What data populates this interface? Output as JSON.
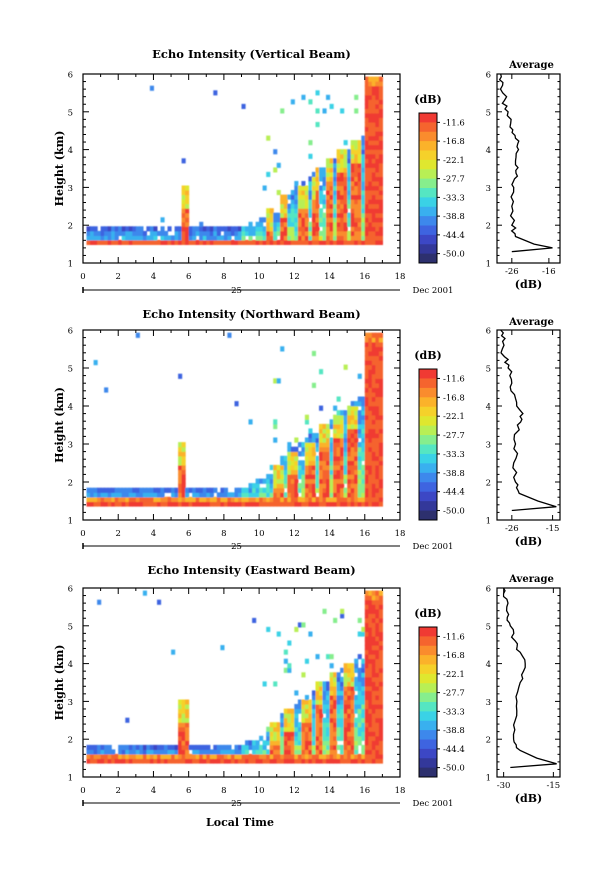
{
  "figure": {
    "x_ticks": [
      "0",
      "2",
      "4",
      "6",
      "8",
      "10",
      "12",
      "14",
      "16",
      "18"
    ],
    "y_ticks": [
      "1",
      "2",
      "3",
      "4",
      "5",
      "6"
    ],
    "day_label": "25",
    "date_label": "Dec 2001",
    "ylabel": "Height (km)",
    "xlabel": "Local Time",
    "colorbar_unit": "(dB)",
    "colorbar_ticks": [
      "-11.6",
      "-16.8",
      "-22.1",
      "-27.7",
      "-33.3",
      "-38.8",
      "-44.4",
      "-50.0"
    ],
    "colorbar_colors": [
      "#f03a33",
      "#f5642e",
      "#fa8c2d",
      "#fbb22a",
      "#f5d12a",
      "#dfe72f",
      "#b8ef55",
      "#86ee8d",
      "#55e6c2",
      "#3ad2e6",
      "#39b0ef",
      "#3d88ec",
      "#3e64e0",
      "#3c47c5",
      "#33389a",
      "#2d306e"
    ],
    "avg_title": "Average",
    "avg_xlabel": "(dB)"
  },
  "chart_data": [
    {
      "type": "heatmap",
      "title": "Echo Intensity (Vertical Beam)",
      "xlabel": "Local Time",
      "ylabel": "Height (km)",
      "xlim": [
        0,
        18
      ],
      "ylim": [
        1,
        6
      ],
      "unit": "dB",
      "color_range": [
        -50.0,
        -11.6
      ],
      "spikes_x": [
        5.7,
        10.5,
        11.3,
        12.4,
        13.1,
        13.9,
        14.6,
        15.4
      ],
      "strong_column_x": [
        15.9,
        16.8
      ],
      "base_height_km": 1.45,
      "average_profile": {
        "title": "Average",
        "xlabel": "(dB)",
        "xticks": [
          "-26",
          "-16"
        ],
        "xlim": [
          -30,
          -13
        ],
        "height": [
          1.3,
          1.4,
          1.5,
          1.7,
          2.0,
          2.5,
          3.0,
          3.3,
          3.6,
          4.0,
          4.3,
          4.6,
          5.0,
          5.3,
          5.7,
          6.0
        ],
        "value": [
          -26,
          -15,
          -20,
          -25,
          -26,
          -26,
          -25.5,
          -24.5,
          -25,
          -24.2,
          -25,
          -26.5,
          -27,
          -28,
          -28.5,
          -29
        ]
      }
    },
    {
      "type": "heatmap",
      "title": "Echo Intensity (Northward Beam)",
      "xlabel": "Local Time",
      "ylabel": "Height (km)",
      "xlim": [
        0,
        18
      ],
      "ylim": [
        1,
        6
      ],
      "unit": "dB",
      "color_range": [
        -50.0,
        -11.6
      ],
      "spikes_x": [
        5.5,
        11.0,
        11.8,
        12.8,
        13.6,
        14.4,
        15.2
      ],
      "strong_column_x": [
        15.9,
        16.8
      ],
      "base_height_km": 1.4,
      "average_profile": {
        "title": "Average",
        "xlabel": "(dB)",
        "xticks": [
          "-26",
          "-15"
        ],
        "xlim": [
          -30,
          -13
        ],
        "height": [
          1.25,
          1.35,
          1.5,
          1.7,
          2.0,
          2.5,
          3.0,
          3.5,
          3.8,
          4.2,
          4.6,
          5.0,
          5.3,
          5.7,
          6.0
        ],
        "value": [
          -26,
          -14,
          -19,
          -24,
          -25,
          -25.5,
          -25,
          -24.5,
          -23,
          -25,
          -26,
          -27,
          -28,
          -28.5,
          -29
        ]
      }
    },
    {
      "type": "heatmap",
      "title": "Echo Intensity (Eastward Beam)",
      "xlabel": "Local Time",
      "ylabel": "Height (km)",
      "xlim": [
        0,
        18
      ],
      "ylim": [
        1,
        6
      ],
      "unit": "dB",
      "color_range": [
        -50.0,
        -11.6
      ],
      "spikes_x": [
        5.6,
        10.8,
        11.6,
        12.6,
        13.3,
        14.1,
        15.0
      ],
      "strong_column_x": [
        15.9,
        16.8
      ],
      "base_height_km": 1.38,
      "average_profile": {
        "title": "Average",
        "xlabel": "(dB)",
        "xticks": [
          "-30",
          "-15"
        ],
        "xlim": [
          -32,
          -13
        ],
        "height": [
          1.25,
          1.35,
          1.5,
          1.7,
          2.0,
          2.5,
          3.0,
          3.5,
          3.9,
          4.3,
          4.6,
          5.0,
          5.3,
          5.7,
          6.0
        ],
        "value": [
          -28,
          -14,
          -20,
          -25,
          -27,
          -26.5,
          -26,
          -25,
          -23.5,
          -25,
          -26.5,
          -28,
          -28.5,
          -29,
          -30
        ]
      }
    }
  ]
}
